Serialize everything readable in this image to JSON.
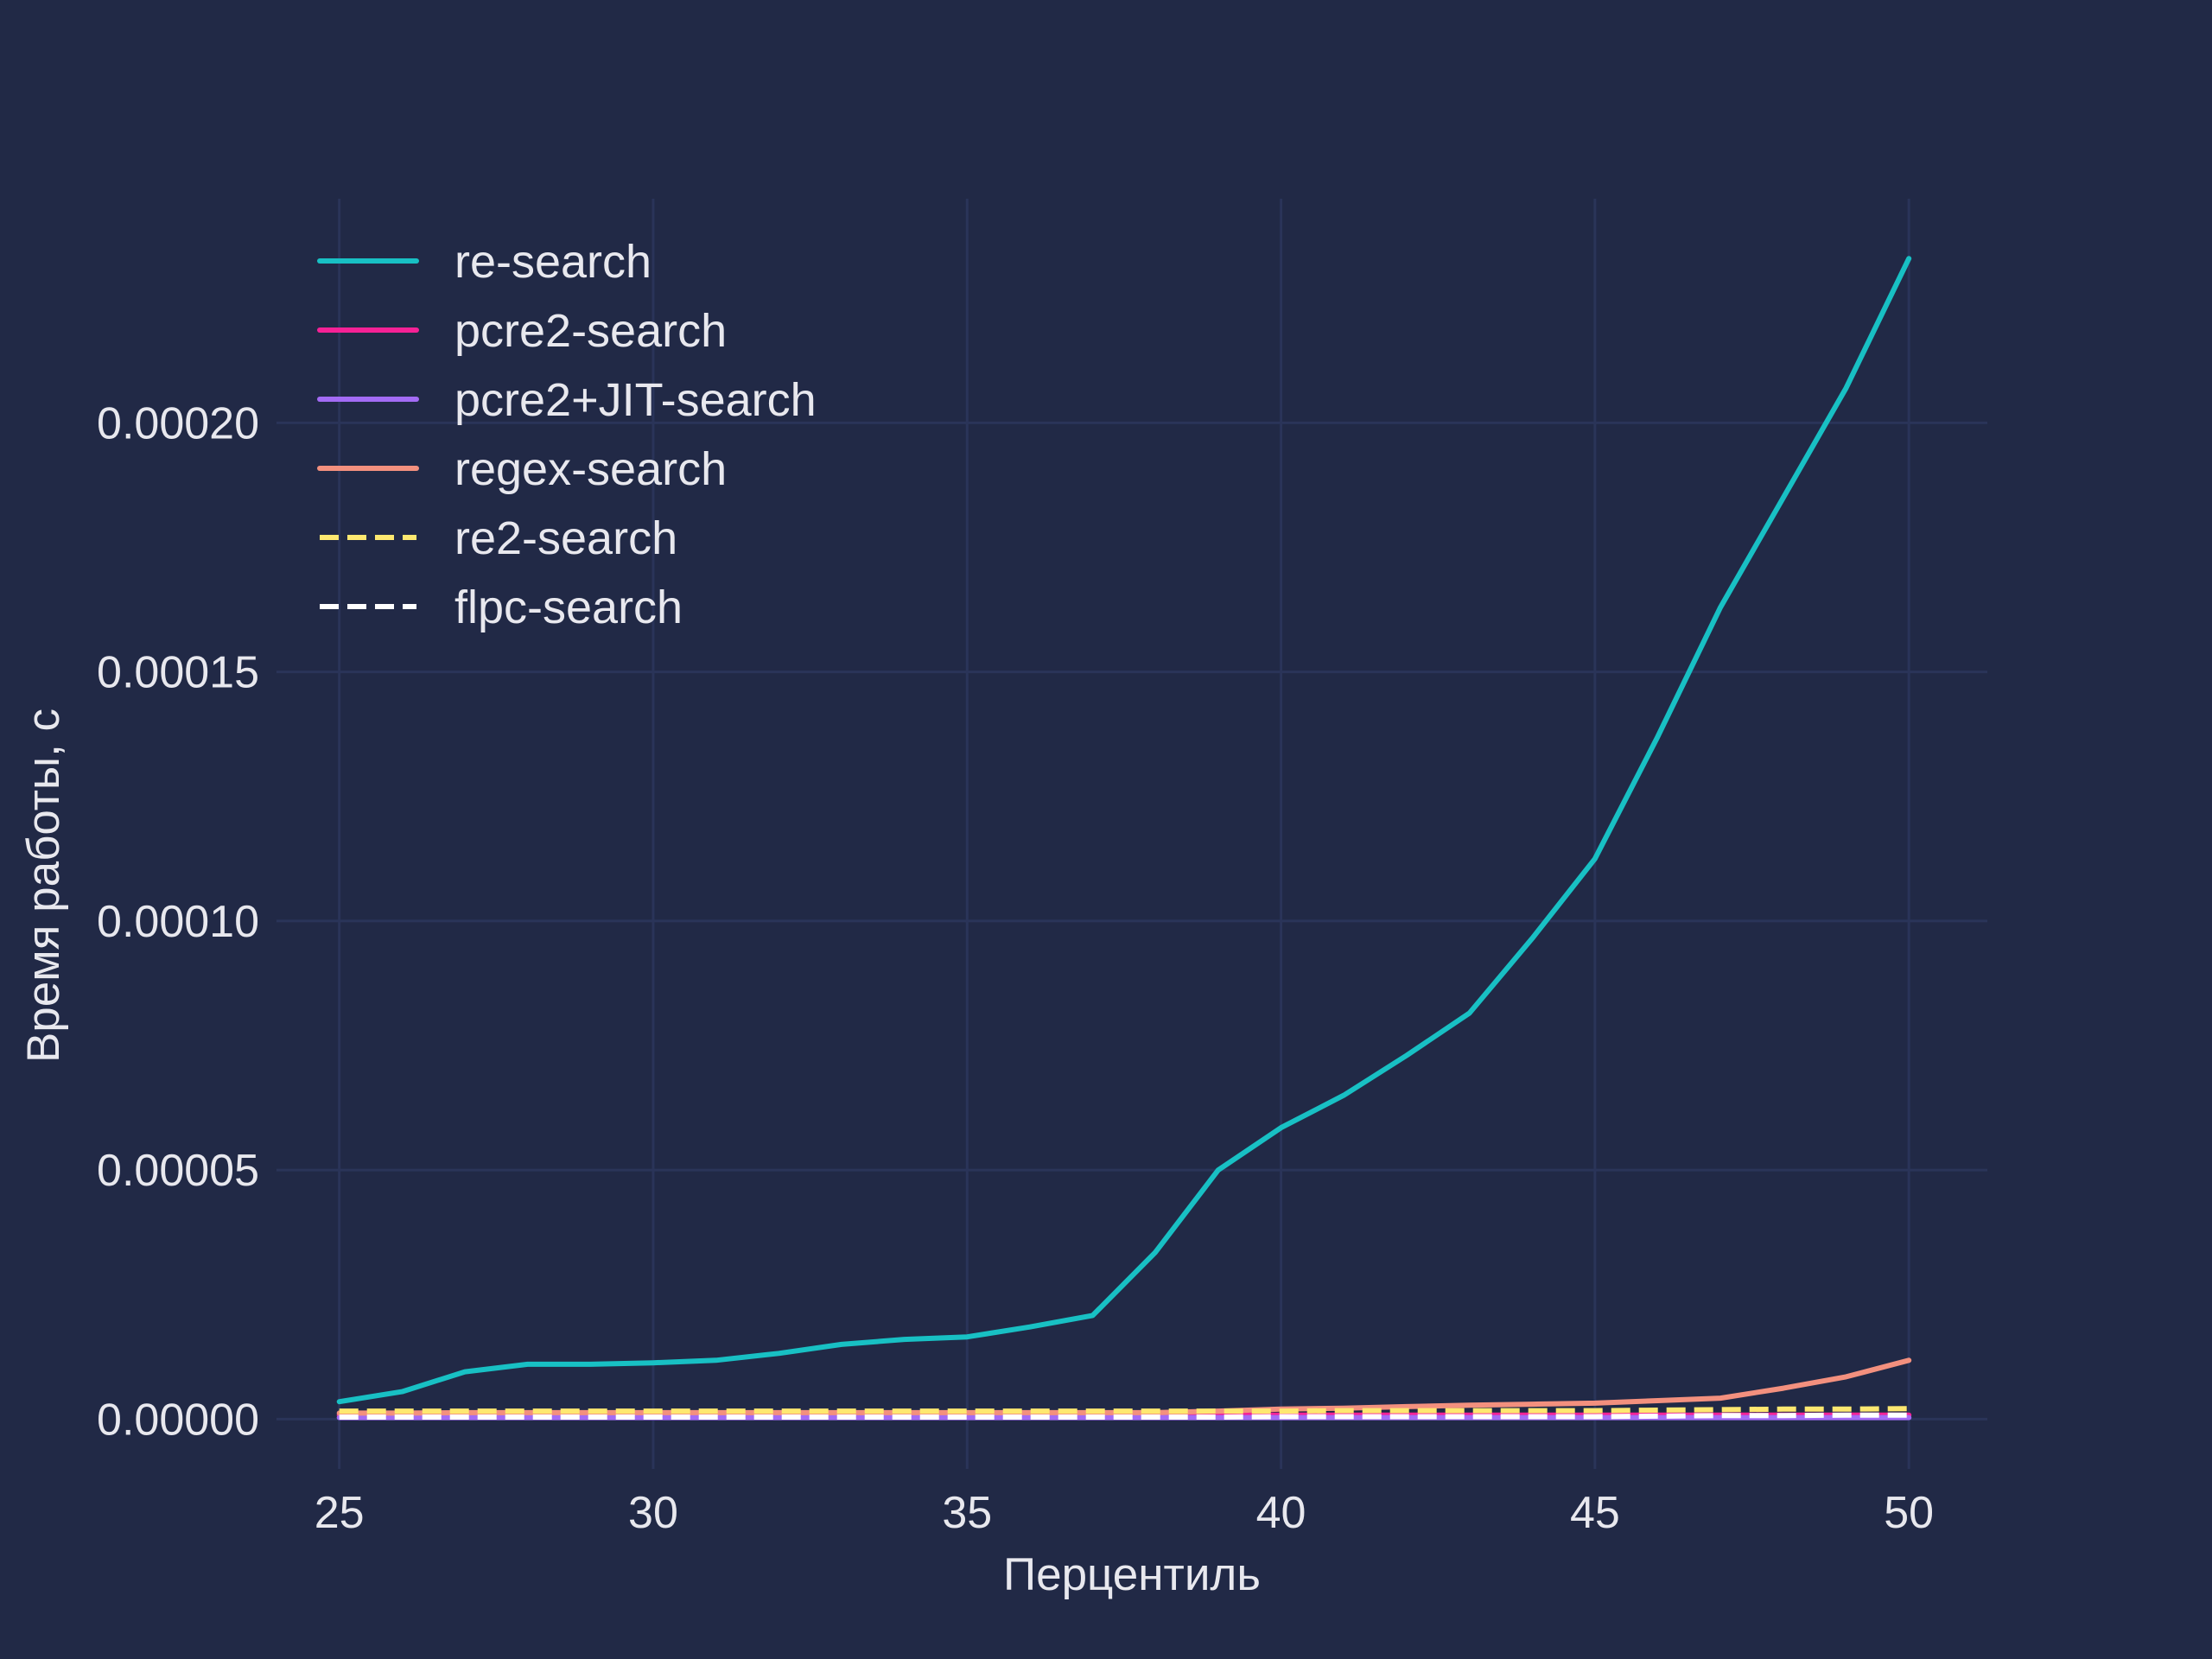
{
  "chart_data": {
    "type": "line",
    "title": "",
    "xlabel": "Перцентиль",
    "ylabel": "Время работы, с",
    "xlim": [
      24.0,
      51.25
    ],
    "ylim": [
      -1e-05,
      0.000245
    ],
    "xticks": [
      25,
      30,
      35,
      40,
      45,
      50
    ],
    "xtick_labels": [
      "25",
      "30",
      "35",
      "40",
      "45",
      "50"
    ],
    "yticks": [
      0.0,
      5e-05,
      0.0001,
      0.00015,
      0.0002
    ],
    "ytick_labels": [
      "0.00000",
      "0.00005",
      "0.00010",
      "0.00015",
      "0.00020"
    ],
    "grid": true,
    "legend_position": "top-left",
    "background": "#212946",
    "grid_color": "#2A3459",
    "x": [
      25,
      26,
      27,
      28,
      29,
      30,
      31,
      32,
      33,
      34,
      35,
      36,
      37,
      38,
      39,
      40,
      41,
      42,
      43,
      44,
      45,
      46,
      47,
      48,
      49,
      50
    ],
    "series": [
      {
        "name": "re-search",
        "color": "#18c0c4",
        "dash": "solid",
        "values": [
          3.5e-06,
          5.5e-06,
          9.5e-06,
          1.1e-05,
          1.1e-05,
          1.13e-05,
          1.18e-05,
          1.32e-05,
          1.5e-05,
          1.6e-05,
          1.65e-05,
          1.85e-05,
          2.08e-05,
          3.35e-05,
          5e-05,
          5.85e-05,
          6.5e-05,
          7.3e-05,
          8.15e-05,
          9.65e-05,
          0.0001125,
          0.000137,
          0.000163,
          0.000185,
          0.000207,
          0.000233
        ]
      },
      {
        "name": "pcre2-search",
        "color": "#f62196",
        "dash": "solid",
        "values": [
          8e-07,
          8e-07,
          8e-07,
          8e-07,
          8e-07,
          8e-07,
          8e-07,
          8e-07,
          8e-07,
          8e-07,
          8e-07,
          8e-07,
          8e-07,
          8e-07,
          8e-07,
          8e-07,
          8e-07,
          8e-07,
          8e-07,
          8e-07,
          8e-07,
          8e-07,
          8e-07,
          8e-07,
          8e-07,
          8e-07
        ]
      },
      {
        "name": "pcre2+JIT-search",
        "color": "#a36bf5",
        "dash": "solid",
        "values": [
          3e-07,
          3e-07,
          3e-07,
          3e-07,
          3e-07,
          3e-07,
          3e-07,
          3e-07,
          3e-07,
          3e-07,
          3e-07,
          3e-07,
          3e-07,
          3e-07,
          3e-07,
          3e-07,
          3e-07,
          3e-07,
          3e-07,
          3e-07,
          3e-07,
          3e-07,
          3e-07,
          3e-07,
          3e-07,
          3e-07
        ]
      },
      {
        "name": "regex-search",
        "color": "#f3907e",
        "dash": "solid",
        "values": [
          1.2e-06,
          1.2e-06,
          1.3e-06,
          1.3e-06,
          1.3e-06,
          1.3e-06,
          1.3e-06,
          1.3e-06,
          1.3e-06,
          1.3e-06,
          1.3e-06,
          1.3e-06,
          1.3e-06,
          1.3e-06,
          1.6e-06,
          2e-06,
          2.2e-06,
          2.5e-06,
          2.8e-06,
          3e-06,
          3.2e-06,
          3.7e-06,
          4.2e-06,
          6.2e-06,
          8.5e-06,
          1.18e-05
        ]
      },
      {
        "name": "re2-search",
        "color": "#fee870",
        "dash": "dashed",
        "values": [
          1.6e-06,
          1.6e-06,
          1.6e-06,
          1.6e-06,
          1.6e-06,
          1.6e-06,
          1.6e-06,
          1.6e-06,
          1.6e-06,
          1.6e-06,
          1.6e-06,
          1.6e-06,
          1.6e-06,
          1.6e-06,
          1.6e-06,
          1.6e-06,
          1.7e-06,
          1.7e-06,
          1.7e-06,
          1.7e-06,
          1.7e-06,
          1.8e-06,
          1.9e-06,
          2e-06,
          2e-06,
          2.1e-06
        ]
      },
      {
        "name": "flpc-search",
        "color": "#ffffff",
        "dash": "dashed",
        "values": [
          4e-07,
          4e-07,
          4e-07,
          4e-07,
          4e-07,
          4e-07,
          4e-07,
          4e-07,
          4e-07,
          4e-07,
          4e-07,
          4e-07,
          4e-07,
          4e-07,
          4e-07,
          5e-07,
          5e-07,
          5e-07,
          5e-07,
          5e-07,
          5e-07,
          6e-07,
          7e-07,
          7e-07,
          8e-07,
          8e-07
        ]
      }
    ]
  }
}
